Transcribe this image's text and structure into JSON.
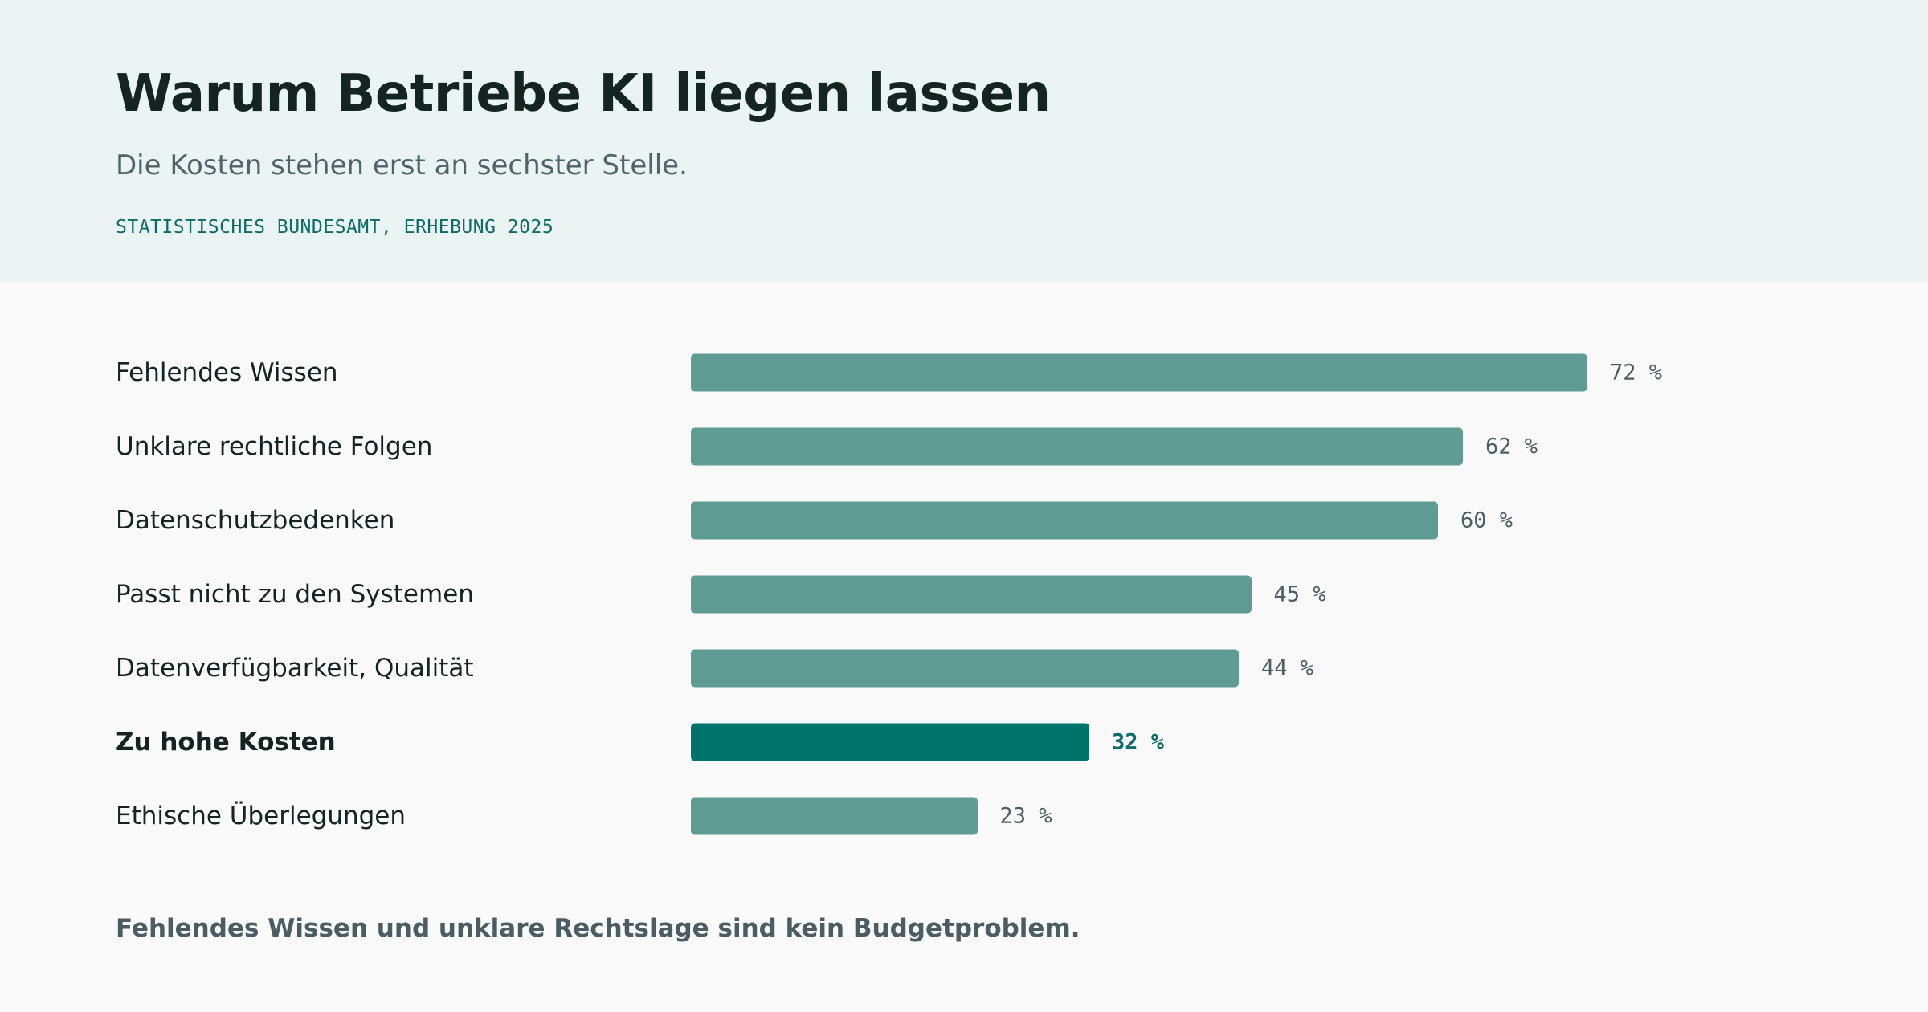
{
  "header": {
    "title": "Warum Betriebe KI liegen lassen",
    "subtitle": "Die Kosten stehen erst an sechster Stelle.",
    "source": "STATISTISCHES BUNDESAMT, ERHEBUNG 2025"
  },
  "footnote": "Fehlendes Wissen und unklare Rechtslage sind kein Budgetproblem.",
  "colors": {
    "bar": "#5f9c93",
    "highlight": "#00736b",
    "header_bg": "#eaf4f2"
  },
  "chart_data": {
    "type": "bar",
    "orientation": "horizontal",
    "unit": "%",
    "categories": [
      "Fehlendes Wissen",
      "Unklare rechtliche Folgen",
      "Datenschutzbedenken",
      "Passt nicht zu den Systemen",
      "Datenverfügbarkeit, Qualität",
      "Zu hohe Kosten",
      "Ethische Überlegungen"
    ],
    "values": [
      72,
      62,
      60,
      45,
      44,
      32,
      23
    ],
    "value_labels": [
      "72 %",
      "62 %",
      "60 %",
      "45 %",
      "44 %",
      "32 %",
      "23 %"
    ],
    "highlighted_category": "Zu hohe Kosten",
    "xlim": [
      0,
      100
    ],
    "grid": false,
    "legend": "none"
  }
}
